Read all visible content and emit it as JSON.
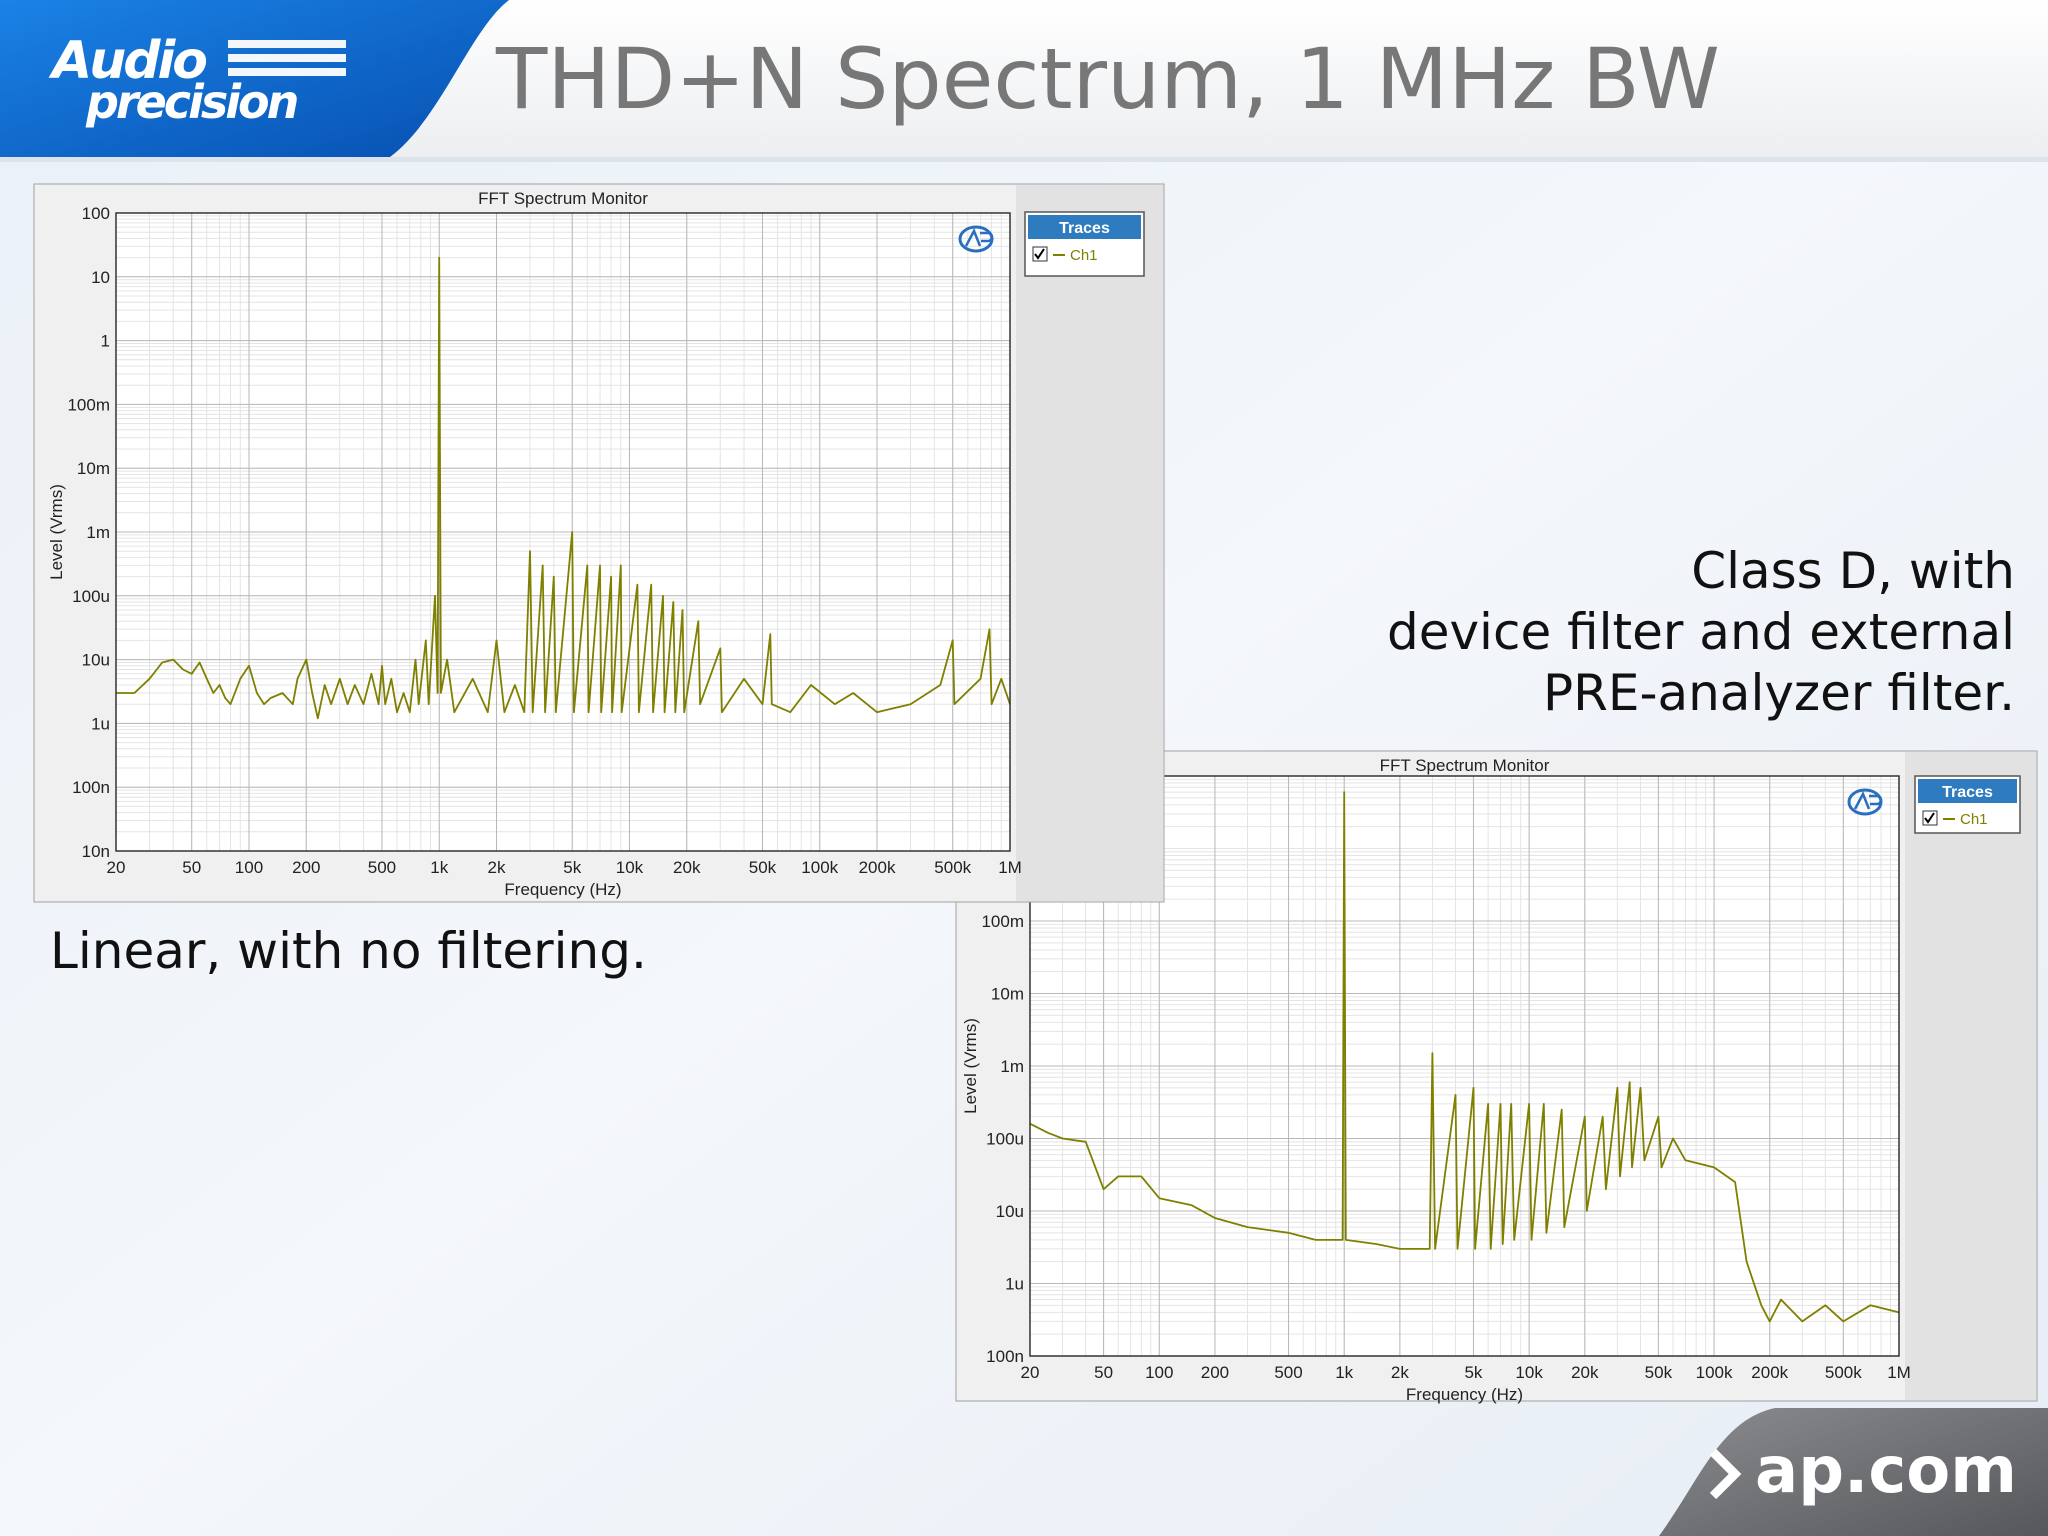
{
  "header": {
    "logo_line1": "Audio",
    "logo_line2": "precision",
    "title": "THD+N Spectrum, 1 MHz BW"
  },
  "captions": {
    "linear": "Linear, with no filtering.",
    "class_d": [
      "Class D, with",
      "device filter and external",
      "PRE-analyzer filter."
    ]
  },
  "footer": {
    "link": "ap.com"
  },
  "chart_data": [
    {
      "type": "line",
      "title": "FFT Spectrum Monitor",
      "x_label": "Frequency (Hz)",
      "y_label": "Level (Vrms)",
      "x_scale": "log",
      "y_scale": "log",
      "grid": true,
      "legend_title": "Traces",
      "legend_position": "right",
      "xlim": [
        20,
        1000000
      ],
      "xticks": [
        20,
        50,
        100,
        200,
        500,
        {
          "value": 1000,
          "label": "1k"
        },
        {
          "value": 2000,
          "label": "2k"
        },
        {
          "value": 5000,
          "label": "5k"
        },
        {
          "value": 10000,
          "label": "10k"
        },
        {
          "value": 20000,
          "label": "20k"
        },
        {
          "value": 50000,
          "label": "50k"
        },
        {
          "value": 100000,
          "label": "100k"
        },
        {
          "value": 200000,
          "label": "200k"
        },
        {
          "value": 500000,
          "label": "500k"
        },
        {
          "value": 1000000,
          "label": "1M"
        }
      ],
      "ylim": [
        1e-08,
        100
      ],
      "yticks": [
        {
          "value": 1e-08,
          "label": "10n"
        },
        {
          "value": 1e-07,
          "label": "100n"
        },
        {
          "value": 1e-06,
          "label": "1u"
        },
        {
          "value": 1e-05,
          "label": "10u"
        },
        {
          "value": 0.0001,
          "label": "100u"
        },
        {
          "value": 0.001,
          "label": "1m"
        },
        {
          "value": 0.01,
          "label": "10m"
        },
        {
          "value": 0.1,
          "label": "100m"
        },
        1,
        10,
        100
      ],
      "x": [
        20,
        25,
        30,
        35,
        40,
        45,
        50,
        55,
        60,
        65,
        70,
        75,
        80,
        90,
        100,
        110,
        120,
        130,
        150,
        170,
        180,
        200,
        215,
        230,
        250,
        270,
        300,
        330,
        360,
        400,
        440,
        480,
        500,
        520,
        560,
        600,
        650,
        700,
        750,
        780,
        850,
        880,
        950,
        980,
        1000,
        1020,
        1100,
        1200,
        1500,
        1800,
        2000,
        2200,
        2500,
        2800,
        3000,
        3100,
        3500,
        3600,
        4000,
        4100,
        5000,
        5100,
        6000,
        6100,
        7000,
        7100,
        8000,
        8100,
        9000,
        9100,
        11000,
        11200,
        13000,
        13300,
        15000,
        15300,
        17000,
        17400,
        19000,
        19400,
        23000,
        23500,
        30000,
        30600,
        40000,
        50000,
        55000,
        56000,
        70000,
        90000,
        120000,
        150000,
        200000,
        300000,
        430000,
        500000,
        510000,
        700000,
        780000,
        800000,
        900000,
        1000000
      ],
      "series": [
        {
          "name": "Ch1",
          "color": "#7f7f00",
          "values": [
            3e-06,
            3e-06,
            5e-06,
            9e-06,
            1e-05,
            7e-06,
            6e-06,
            9e-06,
            5e-06,
            3e-06,
            4e-06,
            2.5e-06,
            2e-06,
            5e-06,
            8e-06,
            3e-06,
            2e-06,
            2.5e-06,
            3e-06,
            2e-06,
            5e-06,
            1e-05,
            3e-06,
            1.2e-06,
            4e-06,
            2e-06,
            5e-06,
            2e-06,
            4e-06,
            2e-06,
            6e-06,
            2e-06,
            8e-06,
            2e-06,
            5e-06,
            1.5e-06,
            3e-06,
            1.5e-06,
            1e-05,
            2e-06,
            2e-05,
            2e-06,
            0.0001,
            3e-06,
            20,
            3e-06,
            1e-05,
            1.5e-06,
            5e-06,
            1.5e-06,
            2e-05,
            1.5e-06,
            4e-06,
            1.5e-06,
            0.0005,
            1.5e-06,
            0.0003,
            1.5e-06,
            0.0002,
            1.5e-06,
            0.001,
            1.5e-06,
            0.0003,
            1.5e-06,
            0.0003,
            1.5e-06,
            0.0002,
            1.5e-06,
            0.0003,
            1.5e-06,
            0.00015,
            1.5e-06,
            0.00015,
            1.5e-06,
            0.0001,
            1.5e-06,
            8e-05,
            1.5e-06,
            6e-05,
            1.5e-06,
            4e-05,
            2e-06,
            1.5e-05,
            1.5e-06,
            5e-06,
            2e-06,
            2.5e-05,
            2e-06,
            1.5e-06,
            4e-06,
            2e-06,
            3e-06,
            1.5e-06,
            2e-06,
            4e-06,
            2e-05,
            2e-06,
            5e-06,
            3e-05,
            2e-06,
            5e-06,
            2e-06
          ]
        }
      ]
    },
    {
      "type": "line",
      "title": "FFT Spectrum Monitor",
      "x_label": "Frequency (Hz)",
      "y_label": "Level (Vrms)",
      "x_scale": "log",
      "y_scale": "log",
      "grid": true,
      "legend_title": "Traces",
      "legend_position": "right",
      "xlim": [
        20,
        1000000
      ],
      "xticks": [
        20,
        50,
        100,
        200,
        500,
        {
          "value": 1000,
          "label": "1k"
        },
        {
          "value": 2000,
          "label": "2k"
        },
        {
          "value": 5000,
          "label": "5k"
        },
        {
          "value": 10000,
          "label": "10k"
        },
        {
          "value": 20000,
          "label": "20k"
        },
        {
          "value": 50000,
          "label": "50k"
        },
        {
          "value": 100000,
          "label": "100k"
        },
        {
          "value": 200000,
          "label": "200k"
        },
        {
          "value": 500000,
          "label": "500k"
        },
        {
          "value": 1000000,
          "label": "1M"
        }
      ],
      "ylim": [
        1e-07,
        10
      ],
      "yticks": [
        {
          "value": 1e-07,
          "label": "100n"
        },
        {
          "value": 1e-06,
          "label": "1u"
        },
        {
          "value": 1e-05,
          "label": "10u"
        },
        {
          "value": 0.0001,
          "label": "100u"
        },
        {
          "value": 0.001,
          "label": "1m"
        },
        {
          "value": 0.01,
          "label": "10m"
        },
        {
          "value": 0.1,
          "label": "100m"
        }
      ],
      "x": [
        20,
        25,
        30,
        40,
        50,
        60,
        80,
        100,
        150,
        200,
        300,
        500,
        700,
        980,
        1000,
        1020,
        1500,
        2000,
        2900,
        3000,
        3100,
        4000,
        4100,
        5000,
        5100,
        6000,
        6200,
        7000,
        7200,
        8000,
        8300,
        10000,
        10300,
        12000,
        12400,
        15000,
        15500,
        20000,
        20500,
        25000,
        26000,
        30000,
        31000,
        35000,
        36000,
        40000,
        42000,
        50000,
        52000,
        60000,
        70000,
        100000,
        130000,
        150000,
        180000,
        200000,
        230000,
        300000,
        400000,
        500000,
        700000,
        1000000
      ],
      "series": [
        {
          "name": "Ch1",
          "color": "#7f7f00",
          "values": [
            0.00016,
            0.00012,
            0.0001,
            9e-05,
            2e-05,
            3e-05,
            3e-05,
            1.5e-05,
            1.2e-05,
            8e-06,
            6e-06,
            5e-06,
            4e-06,
            4e-06,
            6,
            4e-06,
            3.5e-06,
            3e-06,
            3e-06,
            0.0015,
            3e-06,
            0.0004,
            3e-06,
            0.0005,
            3e-06,
            0.0003,
            3e-06,
            0.0003,
            3.5e-06,
            0.0003,
            4e-06,
            0.0003,
            4e-06,
            0.0003,
            5e-06,
            0.00025,
            6e-06,
            0.0002,
            1e-05,
            0.0002,
            2e-05,
            0.0005,
            3e-05,
            0.0006,
            4e-05,
            0.0005,
            5e-05,
            0.0002,
            4e-05,
            0.0001,
            5e-05,
            4e-05,
            2.5e-05,
            2e-06,
            5e-07,
            3e-07,
            6e-07,
            3e-07,
            5e-07,
            3e-07,
            5e-07,
            4e-07
          ]
        }
      ]
    }
  ]
}
